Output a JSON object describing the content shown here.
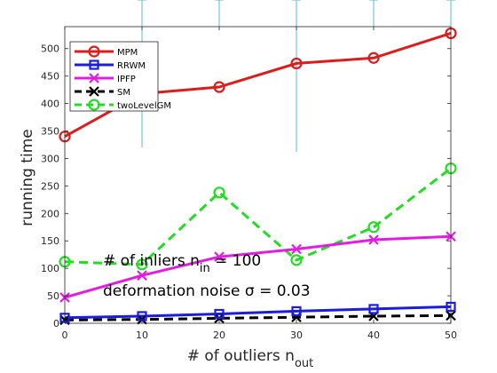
{
  "chart_data": {
    "type": "line",
    "xlabel": "# of outliers n",
    "xlabel_sub": "out",
    "ylabel": "running time",
    "x": [
      0,
      10,
      20,
      30,
      40,
      50
    ],
    "xlim": [
      0,
      50
    ],
    "ylim": [
      0,
      540
    ],
    "xticks": [
      "0",
      "10",
      "20",
      "30",
      "40",
      "50"
    ],
    "yticks": [
      "0",
      "50",
      "100",
      "150",
      "200",
      "250",
      "300",
      "350",
      "400",
      "450",
      "500"
    ],
    "ytick_values": [
      0,
      50,
      100,
      150,
      200,
      250,
      300,
      350,
      400,
      450,
      500
    ],
    "grid": false,
    "legend_position": "top-left",
    "series": [
      {
        "name": "MPM",
        "values": [
          340,
          418,
          430,
          473,
          483,
          528
        ],
        "color": "#dd1c1c",
        "dash": "solid",
        "marker": "circle"
      },
      {
        "name": "RRWM",
        "values": [
          10,
          13,
          17,
          22,
          26,
          30
        ],
        "color": "#1c1cdd",
        "dash": "solid",
        "marker": "square"
      },
      {
        "name": "IPFP",
        "values": [
          47,
          87,
          121,
          135,
          152,
          158
        ],
        "color": "#e31ce3",
        "dash": "solid",
        "marker": "x"
      },
      {
        "name": "SM",
        "values": [
          6,
          7,
          9,
          11,
          13,
          14
        ],
        "color": "#000000",
        "dash": "dashed",
        "marker": "x"
      },
      {
        "name": "twoLevelGM",
        "values": [
          112,
          107,
          238,
          115,
          175,
          282
        ],
        "color": "#22dd22",
        "dash": "dashed",
        "marker": "circle"
      }
    ],
    "error_bars": {
      "color": "#5bb8d8",
      "ranges": [
        [
          10,
          320
        ],
        [
          20,
          540
        ],
        [
          30,
          312
        ],
        [
          40,
          540
        ],
        [
          50,
          540
        ]
      ]
    },
    "annotations": [
      {
        "text": "# of inliers n",
        "sub": "in",
        "suffix": " = 100"
      },
      {
        "text": "deformation noise σ = 0.03"
      }
    ]
  }
}
